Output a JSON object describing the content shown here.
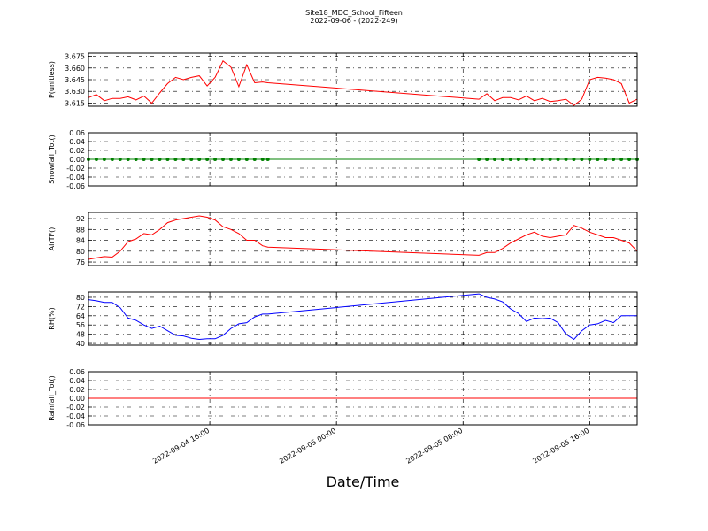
{
  "chart_data": {
    "type": "line",
    "title": "Site18_MDC_School_Fifteen",
    "subtitle": "2022-09-06 - (2022-249)",
    "xlabel": "Date/Time",
    "grid": true,
    "xlim": [
      "2022-09-04 08:20",
      "2022-09-05 19:00"
    ],
    "xticks": [
      "2022-09-04 16:00",
      "2022-09-05 00:00",
      "2022-09-05 08:00",
      "2022-09-05 16:00"
    ],
    "x": [
      "2022-09-04 08:20",
      "2022-09-04 08:50",
      "2022-09-04 09:20",
      "2022-09-04 09:50",
      "2022-09-04 10:20",
      "2022-09-04 10:50",
      "2022-09-04 11:20",
      "2022-09-04 11:50",
      "2022-09-04 12:20",
      "2022-09-04 12:50",
      "2022-09-04 13:20",
      "2022-09-04 13:50",
      "2022-09-04 14:20",
      "2022-09-04 14:50",
      "2022-09-04 15:20",
      "2022-09-04 15:50",
      "2022-09-04 16:20",
      "2022-09-04 16:50",
      "2022-09-04 17:20",
      "2022-09-04 17:50",
      "2022-09-04 18:20",
      "2022-09-04 18:50",
      "2022-09-04 19:20",
      "2022-09-04 19:40",
      "2022-09-05 09:00",
      "2022-09-05 09:30",
      "2022-09-05 10:00",
      "2022-09-05 10:30",
      "2022-09-05 11:00",
      "2022-09-05 11:30",
      "2022-09-05 12:00",
      "2022-09-05 12:30",
      "2022-09-05 13:00",
      "2022-09-05 13:30",
      "2022-09-05 14:00",
      "2022-09-05 14:30",
      "2022-09-05 15:00",
      "2022-09-05 15:30",
      "2022-09-05 16:00",
      "2022-09-05 16:30",
      "2022-09-05 17:00",
      "2022-09-05 17:30",
      "2022-09-05 18:00",
      "2022-09-05 18:30",
      "2022-09-05 19:00"
    ],
    "panels": [
      {
        "ylabel": "P(unitless)",
        "color": "#ff0000",
        "ylim": [
          3.611,
          3.679
        ],
        "yticks": [
          3.615,
          {
            "value": 3.63,
            "label": "3.630"
          },
          3.645,
          {
            "value": 3.66,
            "label": "3.660"
          },
          3.675
        ],
        "values": [
          3.622,
          3.626,
          3.618,
          3.621,
          3.621,
          3.623,
          3.619,
          3.624,
          3.615,
          3.628,
          3.64,
          3.648,
          3.645,
          3.648,
          3.65,
          3.637,
          3.648,
          3.669,
          3.661,
          3.636,
          3.664,
          3.641,
          3.642,
          3.641,
          3.62,
          3.627,
          3.618,
          3.622,
          3.622,
          3.619,
          3.624,
          3.618,
          3.621,
          3.617,
          3.618,
          3.62,
          3.612,
          3.62,
          3.645,
          3.648,
          3.647,
          3.645,
          3.64,
          3.615,
          3.62
        ]
      },
      {
        "ylabel": "Snowfall_Tot()",
        "color": "#008000",
        "marker": "o",
        "ylim": [
          -0.06,
          0.06
        ],
        "yticks": [
          -0.06,
          -0.04,
          -0.02,
          {
            "value": 0,
            "label": "0.00"
          },
          0.02,
          0.04,
          0.06
        ],
        "values": [
          0,
          0,
          0,
          0,
          0,
          0,
          0,
          0,
          0,
          0,
          0,
          0,
          0,
          0,
          0,
          0,
          0,
          0,
          0,
          0,
          0,
          0,
          0,
          0,
          0,
          0,
          0,
          0,
          0,
          0,
          0,
          0,
          0,
          0,
          0,
          0,
          0,
          0,
          0,
          0,
          0,
          0,
          0,
          0,
          0
        ]
      },
      {
        "ylabel": "AirTF()",
        "color": "#ff0000",
        "ylim": [
          74.7,
          94.3
        ],
        "yticks": [
          76,
          80,
          84,
          88,
          92
        ],
        "values": [
          77,
          77.5,
          78,
          77.8,
          80,
          83.5,
          84.5,
          86.5,
          86,
          88,
          90.5,
          91.5,
          92,
          92.5,
          93,
          92.5,
          91.5,
          89,
          88,
          86.5,
          84,
          84,
          82,
          81.5,
          78.5,
          79.5,
          79.5,
          81,
          83,
          84.5,
          86,
          87,
          85.5,
          85,
          85.5,
          86,
          89.5,
          88.5,
          87,
          86,
          85,
          85,
          84,
          83,
          80
        ]
      },
      {
        "ylabel": "RH(%)",
        "color": "#0000ff",
        "ylim": [
          38.5,
          84.6
        ],
        "yticks": [
          40,
          48,
          56,
          64,
          72,
          80
        ],
        "values": [
          78,
          77,
          75.5,
          75.5,
          71,
          62,
          60,
          56,
          53,
          55,
          51,
          47,
          46.5,
          44.5,
          43.5,
          44,
          44,
          47,
          53,
          57,
          58,
          63,
          65.5,
          65.5,
          83,
          80,
          78.5,
          76,
          70,
          66,
          59,
          62,
          61.5,
          62,
          58,
          48,
          43.5,
          51,
          56,
          57,
          60,
          58,
          64,
          64,
          64
        ]
      },
      {
        "ylabel": "Rainfall_Tot()",
        "color": "#ff0000",
        "ylim": [
          -0.06,
          0.06
        ],
        "yticks": [
          -0.06,
          -0.04,
          -0.02,
          {
            "value": 0,
            "label": "0.00"
          },
          0.02,
          0.04,
          0.06
        ],
        "values": [
          0,
          0,
          0,
          0,
          0,
          0,
          0,
          0,
          0,
          0,
          0,
          0,
          0,
          0,
          0,
          0,
          0,
          0,
          0,
          0,
          0,
          0,
          0,
          0,
          0,
          0,
          0,
          0,
          0,
          0,
          0,
          0,
          0,
          0,
          0,
          0,
          0,
          0,
          0,
          0,
          0,
          0,
          0,
          0,
          0
        ]
      }
    ]
  }
}
